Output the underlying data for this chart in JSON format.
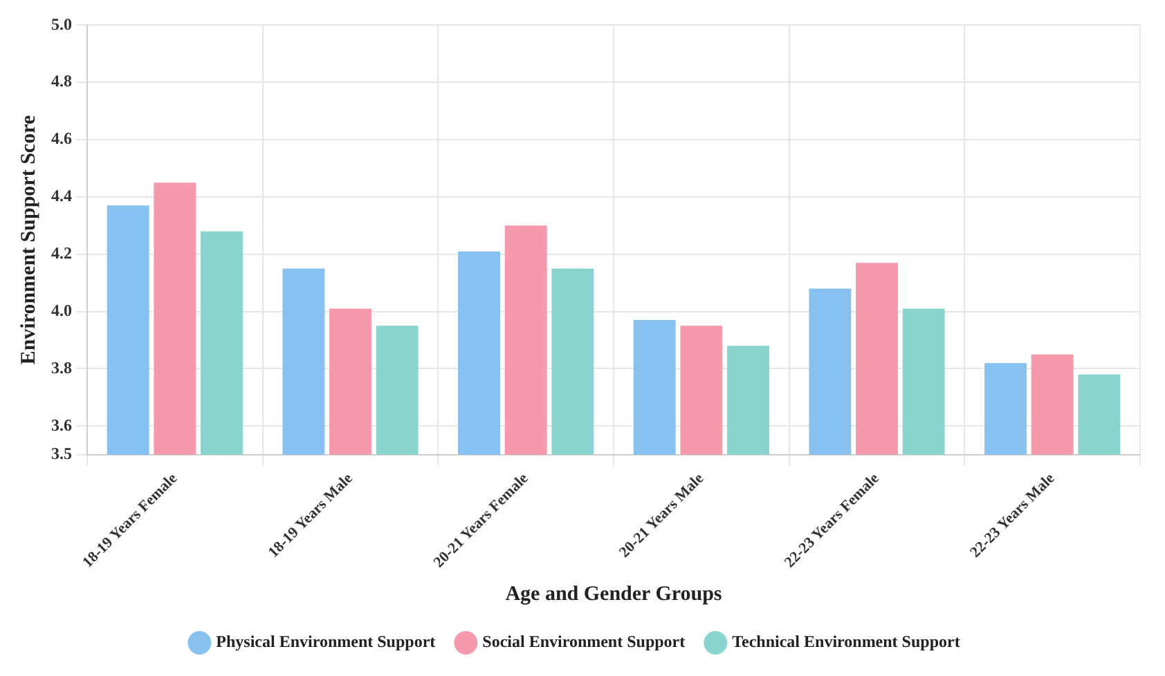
{
  "chart_data": {
    "type": "bar",
    "xlabel": "Age and Gender Groups",
    "ylabel": "Environment Support Score",
    "categories": [
      "18-19 Years Female",
      "18-19 Years Male",
      "20-21 Years Female",
      "20-21 Years Male",
      "22-23 Years Female",
      "22-23 Years Male"
    ],
    "series": [
      {
        "name": "Physical Environment Support",
        "color": "#86c1ef",
        "values": [
          4.37,
          4.15,
          4.21,
          3.97,
          4.08,
          3.82
        ]
      },
      {
        "name": "Social Environment Support",
        "color": "#f799ad",
        "values": [
          4.45,
          4.01,
          4.3,
          3.95,
          4.17,
          3.85
        ]
      },
      {
        "name": "Technical Environment Support",
        "color": "#8ad4cf",
        "values": [
          4.28,
          3.95,
          4.15,
          3.88,
          4.01,
          3.78
        ]
      }
    ],
    "ylim": [
      3.5,
      5.0
    ],
    "yticks": [
      {
        "value": 3.5,
        "label": "3.5"
      },
      {
        "value": 3.6,
        "label": "3.6"
      },
      {
        "value": 3.8,
        "label": "3.8"
      },
      {
        "value": 4.0,
        "label": "4.0"
      },
      {
        "value": 4.2,
        "label": "4.2"
      },
      {
        "value": 4.4,
        "label": "4.4"
      },
      {
        "value": 4.6,
        "label": "4.6"
      },
      {
        "value": 4.8,
        "label": "4.8"
      },
      {
        "value": 5.0,
        "label": "5.0"
      }
    ],
    "grid": true,
    "legend": "bottom"
  }
}
